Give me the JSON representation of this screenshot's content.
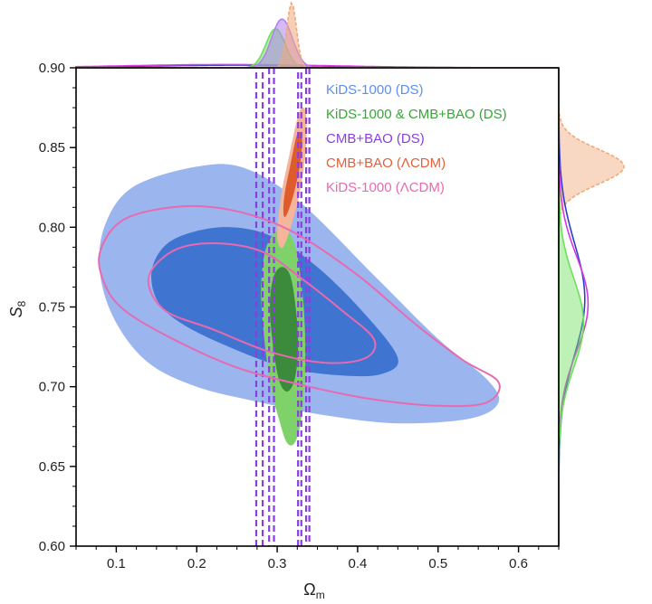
{
  "chart_data": {
    "type": "contour",
    "xlabel": "Ωm",
    "ylabel": "S8",
    "xlim": [
      0.05,
      0.65
    ],
    "ylim": [
      0.6,
      0.9
    ],
    "xticks": [
      0.1,
      0.2,
      0.3,
      0.4,
      0.5,
      0.6
    ],
    "yticks": [
      0.6,
      0.65,
      0.7,
      0.75,
      0.8,
      0.85,
      0.9
    ],
    "xtick_labels": [
      "0.1",
      "0.2",
      "0.3",
      "0.4",
      "0.5",
      "0.6"
    ],
    "ytick_labels": [
      "0.60",
      "0.65",
      "0.70",
      "0.75",
      "0.80",
      "0.85",
      "0.90"
    ],
    "legend_position": "top-right",
    "series": [
      {
        "name": "KiDS-1000 (DS)",
        "color": "#5b8ff0",
        "style": "filled",
        "contours": [
          {
            "level": "95%",
            "color": "#9bb5ef",
            "points": [
              [
                0.085,
                0.8
              ],
              [
                0.12,
                0.825
              ],
              [
                0.2,
                0.838
              ],
              [
                0.26,
                0.837
              ],
              [
                0.33,
                0.815
              ],
              [
                0.42,
                0.77
              ],
              [
                0.5,
                0.73
              ],
              [
                0.56,
                0.705
              ],
              [
                0.575,
                0.69
              ],
              [
                0.54,
                0.68
              ],
              [
                0.45,
                0.677
              ],
              [
                0.36,
                0.682
              ],
              [
                0.28,
                0.69
              ],
              [
                0.2,
                0.7
              ],
              [
                0.14,
                0.715
              ],
              [
                0.1,
                0.74
              ],
              [
                0.08,
                0.77
              ]
            ]
          },
          {
            "level": "68%",
            "color": "#3f74d1",
            "points": [
              [
                0.145,
                0.775
              ],
              [
                0.17,
                0.792
              ],
              [
                0.23,
                0.8
              ],
              [
                0.29,
                0.795
              ],
              [
                0.35,
                0.775
              ],
              [
                0.41,
                0.745
              ],
              [
                0.45,
                0.718
              ],
              [
                0.43,
                0.708
              ],
              [
                0.38,
                0.707
              ],
              [
                0.31,
                0.712
              ],
              [
                0.24,
                0.725
              ],
              [
                0.18,
                0.74
              ],
              [
                0.15,
                0.755
              ]
            ]
          }
        ]
      },
      {
        "name": "KiDS-1000 & CMB+BAO (DS)",
        "color": "#3aa33a",
        "style": "filled",
        "contours": [
          {
            "level": "95%",
            "color": "#7fd26a",
            "points": [
              [
                0.312,
                0.798
              ],
              [
                0.324,
                0.785
              ],
              [
                0.333,
                0.75
              ],
              [
                0.335,
                0.71
              ],
              [
                0.33,
                0.68
              ],
              [
                0.322,
                0.665
              ],
              [
                0.312,
                0.665
              ],
              [
                0.302,
                0.68
              ],
              [
                0.292,
                0.7
              ],
              [
                0.284,
                0.73
              ],
              [
                0.28,
                0.76
              ],
              [
                0.285,
                0.785
              ],
              [
                0.298,
                0.797
              ]
            ]
          },
          {
            "level": "68%",
            "color": "#3c8a3c",
            "points": [
              [
                0.305,
                0.775
              ],
              [
                0.316,
                0.77
              ],
              [
                0.323,
                0.75
              ],
              [
                0.326,
                0.725
              ],
              [
                0.322,
                0.705
              ],
              [
                0.313,
                0.697
              ],
              [
                0.303,
                0.703
              ],
              [
                0.295,
                0.725
              ],
              [
                0.291,
                0.75
              ],
              [
                0.295,
                0.768
              ]
            ]
          }
        ]
      },
      {
        "name": "CMB+BAO (DS)",
        "color": "#8a3ee0",
        "style": "dashed",
        "contours": [
          {
            "level": "95%",
            "bands": [
              [
                0.274,
                0.296
              ],
              [
                0.326,
                0.34
              ]
            ]
          },
          {
            "level": "68%",
            "bands": [
              [
                0.282,
                0.29
              ],
              [
                0.33,
                0.336
              ]
            ]
          }
        ]
      },
      {
        "name": "CMB+BAO (ΛCDM)",
        "color": "#e55f3a",
        "style": "filled",
        "contours": [
          {
            "level": "95%",
            "color": "#f4b59a",
            "points": [
              [
                0.331,
                0.875
              ],
              [
                0.336,
                0.87
              ],
              [
                0.335,
                0.845
              ],
              [
                0.325,
                0.815
              ],
              [
                0.31,
                0.79
              ],
              [
                0.303,
                0.788
              ],
              [
                0.3,
                0.797
              ],
              [
                0.305,
                0.82
              ],
              [
                0.315,
                0.845
              ],
              [
                0.325,
                0.868
              ]
            ]
          },
          {
            "level": "68%",
            "color": "#dd5b2c",
            "points": [
              [
                0.327,
                0.86
              ],
              [
                0.331,
                0.855
              ],
              [
                0.328,
                0.838
              ],
              [
                0.32,
                0.82
              ],
              [
                0.312,
                0.808
              ],
              [
                0.308,
                0.808
              ],
              [
                0.309,
                0.82
              ],
              [
                0.316,
                0.838
              ],
              [
                0.323,
                0.855
              ]
            ]
          }
        ]
      },
      {
        "name": "KiDS-1000 (ΛCDM)",
        "color": "#e86ab0",
        "style": "outline",
        "contours": [
          {
            "level": "95%",
            "points": [
              [
                0.08,
                0.785
              ],
              [
                0.11,
                0.805
              ],
              [
                0.18,
                0.813
              ],
              [
                0.25,
                0.81
              ],
              [
                0.32,
                0.797
              ],
              [
                0.4,
                0.77
              ],
              [
                0.47,
                0.74
              ],
              [
                0.53,
                0.717
              ],
              [
                0.575,
                0.703
              ],
              [
                0.56,
                0.69
              ],
              [
                0.5,
                0.688
              ],
              [
                0.42,
                0.692
              ],
              [
                0.34,
                0.7
              ],
              [
                0.25,
                0.712
              ],
              [
                0.17,
                0.73
              ],
              [
                0.11,
                0.748
              ],
              [
                0.085,
                0.765
              ]
            ]
          },
          {
            "level": "68%",
            "points": [
              [
                0.14,
                0.768
              ],
              [
                0.17,
                0.785
              ],
              [
                0.22,
                0.79
              ],
              [
                0.28,
                0.785
              ],
              [
                0.33,
                0.768
              ],
              [
                0.38,
                0.748
              ],
              [
                0.42,
                0.73
              ],
              [
                0.41,
                0.718
              ],
              [
                0.36,
                0.715
              ],
              [
                0.29,
                0.722
              ],
              [
                0.22,
                0.736
              ],
              [
                0.16,
                0.748
              ]
            ]
          }
        ]
      }
    ],
    "marginals": {
      "top": [
        {
          "name": "KiDS-1000 (DS)",
          "color": "#2a3fcf",
          "fill": false,
          "peak": 0.25,
          "sigma": 0.12,
          "height": 0.04
        },
        {
          "name": "KiDS-1000 (ΛCDM)",
          "color": "#d63be0",
          "fill": false,
          "peak": 0.24,
          "sigma": 0.13,
          "height": 0.05
        },
        {
          "name": "KiDS-1000 & CMB+BAO (DS)",
          "color": "#6ee05a",
          "fill": true,
          "peak": 0.298,
          "sigma": 0.012,
          "height": 0.6
        },
        {
          "name": "CMB+BAO (DS)",
          "color": "#b183f0",
          "fill": true,
          "peak": 0.306,
          "sigma": 0.013,
          "height": 0.75
        },
        {
          "name": "CMB+BAO (ΛCDM)",
          "color": "#f0a87a",
          "fill": true,
          "peak": 0.318,
          "sigma": 0.006,
          "height": 1.0
        }
      ],
      "right": [
        {
          "name": "CMB+BAO (ΛCDM)",
          "color": "#f0a87a",
          "fill": true,
          "peak": 0.838,
          "sigma": 0.011,
          "height": 1.0
        },
        {
          "name": "KiDS-1000 (DS)",
          "color": "#2a3fcf",
          "fill": false,
          "peak": 0.755,
          "sigma": 0.035,
          "height": 0.4
        },
        {
          "name": "KiDS-1000 (ΛCDM)",
          "color": "#d63be0",
          "fill": false,
          "peak": 0.752,
          "sigma": 0.03,
          "height": 0.45
        },
        {
          "name": "KiDS-1000 & CMB+BAO (DS)",
          "color": "#6ee05a",
          "fill": true,
          "peak": 0.74,
          "sigma": 0.028,
          "height": 0.38
        }
      ]
    }
  }
}
